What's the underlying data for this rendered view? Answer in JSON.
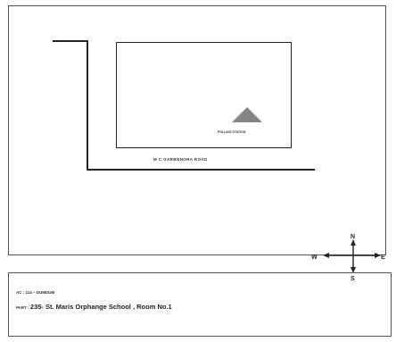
{
  "map": {
    "road_label": "M C   GARBNNORA ROAD",
    "station_label": "POLLING STATION",
    "compass": {
      "north": "N",
      "south": "S",
      "east": "E",
      "west": "W"
    },
    "colors": {
      "station_marker": "#858585"
    }
  },
  "info": {
    "ac": "AC : 114 – DUMDUM",
    "part_key": "PART : ",
    "part_value": "235- St. Maris Orphange School , Room No.1"
  }
}
